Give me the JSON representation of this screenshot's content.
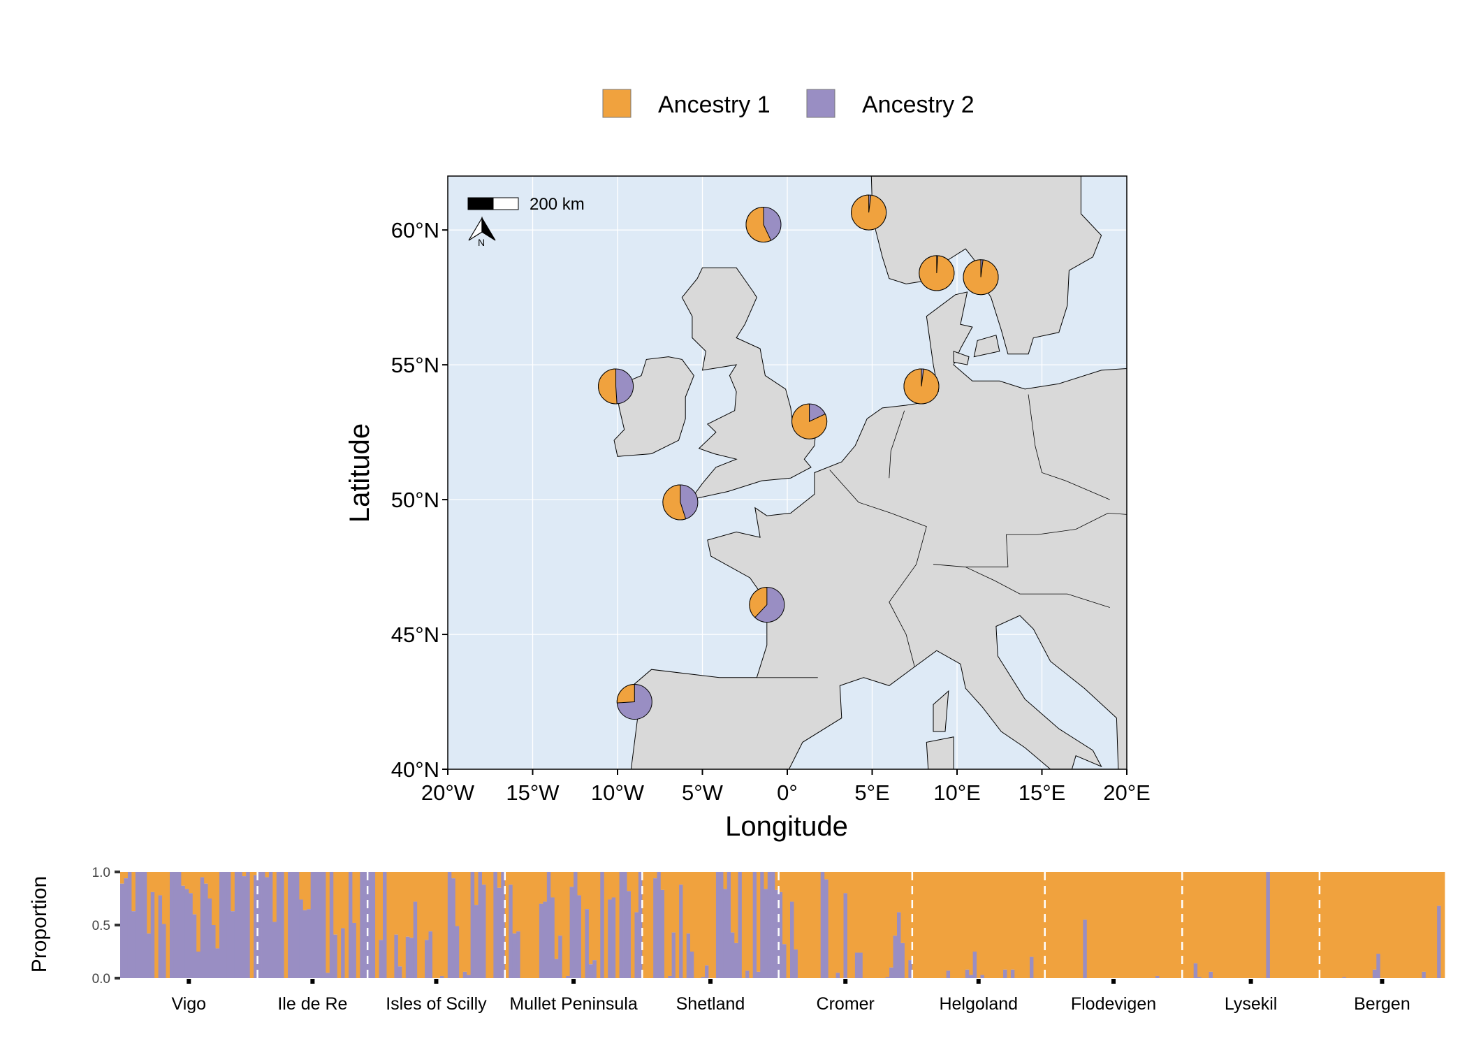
{
  "legend": {
    "items": [
      {
        "label": "Ancestry 1",
        "color": "#F0A23E"
      },
      {
        "label": "Ancestry 2",
        "color": "#998EC3"
      }
    ]
  },
  "chart_data": [
    {
      "type": "map-pie",
      "xlabel": "Longitude",
      "ylabel": "Latitude",
      "xlim": [
        -20,
        20
      ],
      "ylim": [
        40,
        62
      ],
      "x_ticks": [
        {
          "value": -20,
          "label": "20°W"
        },
        {
          "value": -15,
          "label": "15°W"
        },
        {
          "value": -10,
          "label": "10°W"
        },
        {
          "value": -5,
          "label": "5°W"
        },
        {
          "value": 0,
          "label": "0°"
        },
        {
          "value": 5,
          "label": "5°E"
        },
        {
          "value": 10,
          "label": "10°E"
        },
        {
          "value": 15,
          "label": "15°E"
        },
        {
          "value": 20,
          "label": "20°E"
        }
      ],
      "y_ticks": [
        {
          "value": 40,
          "label": "40°N"
        },
        {
          "value": 45,
          "label": "45°N"
        },
        {
          "value": 50,
          "label": "50°N"
        },
        {
          "value": 55,
          "label": "55°N"
        },
        {
          "value": 60,
          "label": "60°N"
        }
      ],
      "grid": true,
      "sea_color": "#DEEAF6",
      "land_color": "#D9D9D9",
      "scale_bar": "200 km",
      "north_arrow": "N",
      "pies": [
        {
          "site": "Vigo",
          "lon": -9.0,
          "lat": 42.5,
          "ancestry1": 0.26,
          "ancestry2": 0.74
        },
        {
          "site": "Ile de Re",
          "lon": -1.2,
          "lat": 46.1,
          "ancestry1": 0.38,
          "ancestry2": 0.62
        },
        {
          "site": "Isles of Scilly",
          "lon": -6.3,
          "lat": 49.9,
          "ancestry1": 0.55,
          "ancestry2": 0.45
        },
        {
          "site": "Mullet Peninsula",
          "lon": -10.1,
          "lat": 54.2,
          "ancestry1": 0.51,
          "ancestry2": 0.49
        },
        {
          "site": "Shetland",
          "lon": -1.4,
          "lat": 60.2,
          "ancestry1": 0.57,
          "ancestry2": 0.43
        },
        {
          "site": "Cromer",
          "lon": 1.3,
          "lat": 52.9,
          "ancestry1": 0.82,
          "ancestry2": 0.18
        },
        {
          "site": "Helgoland",
          "lon": 7.9,
          "lat": 54.2,
          "ancestry1": 0.98,
          "ancestry2": 0.02
        },
        {
          "site": "Flodevigen",
          "lon": 8.8,
          "lat": 58.4,
          "ancestry1": 0.99,
          "ancestry2": 0.01
        },
        {
          "site": "Lysekil",
          "lon": 11.4,
          "lat": 58.25,
          "ancestry1": 0.98,
          "ancestry2": 0.02
        },
        {
          "site": "Bergen",
          "lon": 4.8,
          "lat": 60.65,
          "ancestry1": 0.98,
          "ancestry2": 0.02
        }
      ]
    },
    {
      "type": "bar",
      "stacked": true,
      "ylabel": "Proportion",
      "ylim": [
        0,
        1
      ],
      "y_ticks": [
        "0.0",
        "0.5",
        "1.0"
      ],
      "y_tick_values": [
        0,
        0.5,
        1
      ],
      "value_meaning": "ancestry1 proportion per individual (ancestry2 = 1 - value)",
      "populations": [
        {
          "name": "Vigo",
          "ancestry1": [
            0.11,
            0.06,
            0,
            0.37,
            0,
            0,
            0,
            0.58,
            0.19,
            1,
            0.22,
            0.49,
            1,
            0,
            0,
            0,
            0.13,
            0.16,
            0.2,
            0.4,
            0.75,
            0.05,
            0.11,
            0.25,
            0.5,
            0.72,
            0,
            0,
            0,
            0.37,
            0,
            0,
            0.04,
            0,
            1,
            0.03
          ]
        },
        {
          "name": "Ile de Re",
          "ancestry1": [
            0,
            0,
            0.05,
            0,
            0.47,
            0,
            0,
            1,
            0,
            0,
            0,
            0.26,
            0.36,
            0.35,
            0,
            0,
            0,
            0,
            0.95,
            0,
            0.59,
            1,
            0.53,
            1,
            0,
            0.48,
            1,
            0,
            0
          ]
        },
        {
          "name": "Isles of Scilly",
          "ancestry1": [
            0,
            0,
            1,
            0.64,
            0,
            1,
            1,
            0.59,
            0.89,
            1,
            0.61,
            0.62,
            0.28,
            1,
            1,
            0.64,
            0.56,
            1,
            1,
            0.98,
            1,
            0,
            0.06,
            0.51,
            1,
            0.94,
            0.97,
            0,
            0.31,
            0,
            0.12,
            1,
            1,
            0,
            0.15,
            0
          ]
        },
        {
          "name": "Mullet Peninsula",
          "ancestry1": [
            1,
            0.12,
            0.58,
            0.56,
            1,
            1,
            1,
            1,
            1,
            0.3,
            0.28,
            0,
            0.24,
            0.82,
            0.6,
            1,
            0.98,
            0.14,
            0,
            0.22,
            1,
            0.35,
            0.87,
            0.83,
            1,
            0,
            1,
            0.26,
            0.24,
            1,
            0,
            0,
            0.18,
            1,
            0.38,
            0
          ]
        },
        {
          "name": "Shetland",
          "ancestry1": [
            1,
            1,
            1,
            0.06,
            0,
            0.17,
            1,
            0.98,
            0.57,
            1,
            0.12,
            1,
            0.58,
            0.75,
            1,
            1,
            0.99,
            0.88,
            1,
            1,
            0,
            0,
            0.16,
            0,
            0.57,
            0.67,
            0,
            1,
            0.93,
            1,
            0,
            0.94,
            0,
            0.16,
            0,
            0,
            0.17
          ]
        },
        {
          "name": "Cromer",
          "ancestry1": [
            0.19,
            0.68,
            1,
            0.28,
            0.73,
            1,
            1,
            1,
            1,
            1,
            1,
            0,
            0.07,
            1,
            1,
            0.95,
            1,
            0.2,
            1,
            1,
            0.76,
            0.76,
            1,
            1,
            1,
            1,
            1,
            1,
            0.99,
            0.9,
            0.6,
            0.38,
            0.67,
            1,
            0.83
          ]
        },
        {
          "name": "Helgoland",
          "ancestry1": [
            1,
            1,
            1,
            1,
            1,
            1,
            1,
            1,
            1,
            0.93,
            1,
            1,
            1,
            1,
            0.92,
            0.97,
            0.75,
            1,
            0.97,
            1,
            1,
            1,
            1,
            1,
            0.92,
            1,
            0.92,
            1,
            1,
            1,
            1,
            0.8,
            1,
            1,
            1
          ]
        },
        {
          "name": "Flodevigen",
          "ancestry1": [
            1,
            1,
            1,
            1,
            1,
            1,
            1,
            1,
            1,
            1,
            0.45,
            1,
            1,
            1,
            1,
            1,
            1,
            1,
            1,
            1,
            1,
            1,
            1,
            1,
            1,
            1,
            1,
            1,
            1,
            0.98,
            1,
            1,
            1,
            1,
            1,
            1
          ]
        },
        {
          "name": "Lysekil",
          "ancestry1": [
            1,
            1,
            1,
            0.86,
            0.99,
            1,
            1,
            0.94,
            1,
            1,
            1,
            1,
            1,
            1,
            1,
            1,
            1,
            1,
            1,
            1,
            1,
            1,
            0,
            1,
            1,
            1,
            1,
            1,
            1,
            1,
            1,
            1,
            1,
            1,
            1,
            1
          ]
        },
        {
          "name": "Bergen",
          "ancestry1": [
            1,
            1,
            1,
            1,
            1,
            1,
            0.99,
            1,
            1,
            1,
            1,
            1,
            1,
            1,
            0.92,
            0.77,
            1,
            1,
            1,
            1,
            1,
            1,
            1,
            1,
            1,
            1,
            1,
            0.94,
            1,
            1,
            1,
            0.32,
            1
          ]
        }
      ]
    }
  ]
}
